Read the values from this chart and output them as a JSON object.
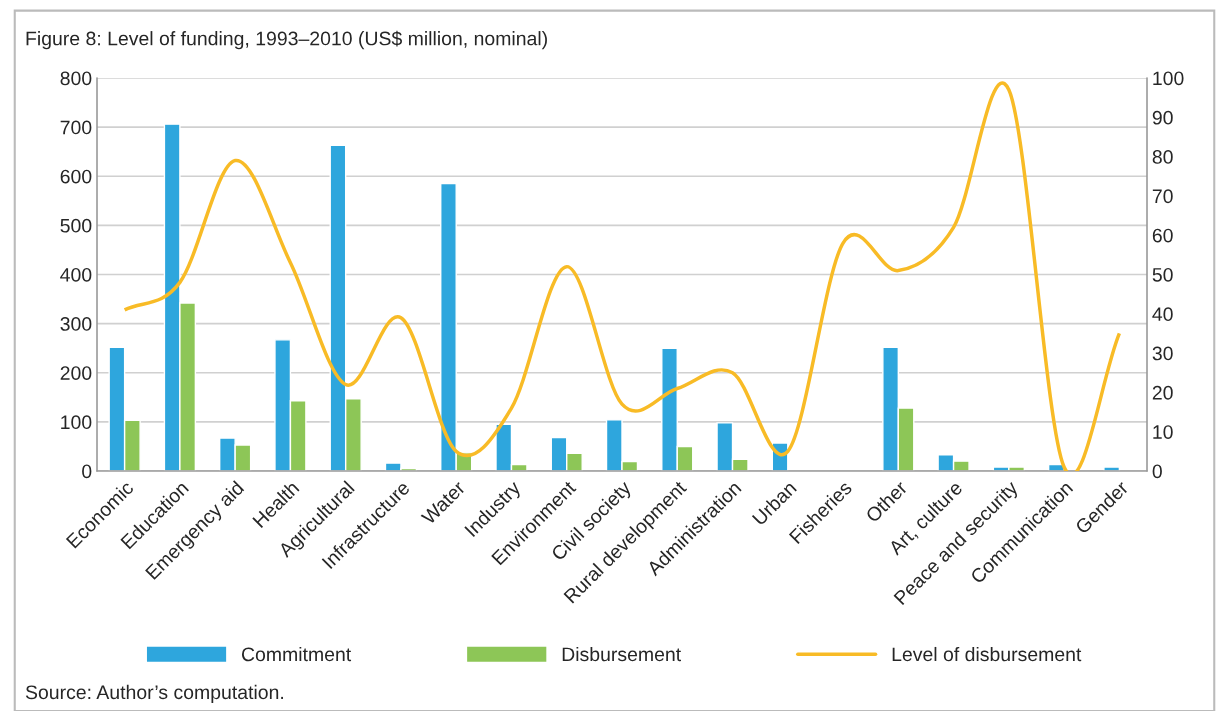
{
  "chart_data": {
    "type": "bar",
    "title": "Figure 8: Level of funding, 1993–2010 (US$ million, nominal)",
    "categories": [
      "Economic",
      "Education",
      "Emergency aid",
      "Health",
      "Agricultural",
      "Infrastructure",
      "Water",
      "Industry",
      "Environment",
      "Civil society",
      "Rural development",
      "Administration",
      "Urban",
      "Fisheries",
      "Other",
      "Art, culture",
      "Peace and security",
      "Communication",
      "Gender"
    ],
    "series": [
      {
        "name": "Commitment",
        "color": "#2ea6dd",
        "values": [
          252,
          706,
          67,
          267,
          663,
          16,
          585,
          95,
          68,
          104,
          250,
          98,
          57,
          null,
          252,
          33,
          8,
          13,
          8
        ]
      },
      {
        "name": "Disbursement",
        "color": "#8dc657",
        "values": [
          103,
          342,
          53,
          143,
          147,
          5,
          37,
          13,
          36,
          19,
          50,
          24,
          null,
          null,
          128,
          20,
          8,
          null,
          null
        ]
      },
      {
        "name": "Level of disbursement",
        "type": "line",
        "axis": "y2",
        "color": "#f8bb26",
        "values": [
          41,
          48,
          79,
          53,
          22,
          39,
          5,
          16,
          52,
          17,
          21,
          25,
          5,
          58,
          51,
          62,
          97,
          1,
          35
        ]
      }
    ],
    "ylim": [
      0,
      800
    ],
    "yticks": [
      0,
      100,
      200,
      300,
      400,
      500,
      600,
      700,
      800
    ],
    "y2lim": [
      0,
      100
    ],
    "y2ticks": [
      0,
      10,
      20,
      30,
      40,
      50,
      60,
      70,
      80,
      90,
      100
    ],
    "grid": "y",
    "legend": "bottom",
    "annotations": [
      "Source: Author’s computation."
    ]
  }
}
